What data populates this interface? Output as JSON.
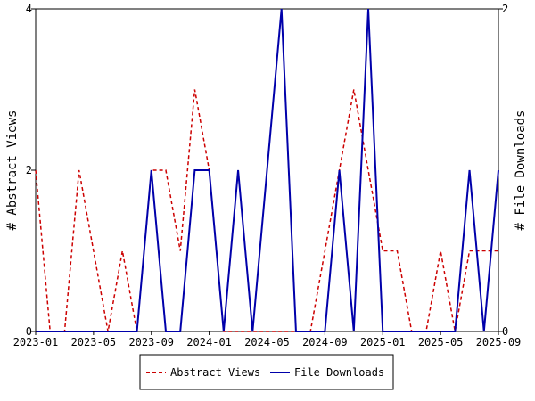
{
  "chart_data": {
    "type": "line",
    "xlabel": "",
    "ylabel_left": "# Abstract Views",
    "ylabel_right": "# File Downloads",
    "ylim_left": [
      0,
      4
    ],
    "ylim_right": [
      0,
      2
    ],
    "yticks_left": [
      "0",
      "2",
      "4"
    ],
    "yticks_right": [
      "0",
      "2"
    ],
    "xticks": [
      "2023-01",
      "2023-05",
      "2023-09",
      "2024-01",
      "2024-05",
      "2024-09",
      "2025-01",
      "2025-05",
      "2025-09"
    ],
    "x": [
      "2023-01",
      "2023-02",
      "2023-03",
      "2023-04",
      "2023-05",
      "2023-06",
      "2023-07",
      "2023-08",
      "2023-09",
      "2023-10",
      "2023-11",
      "2023-12",
      "2024-01",
      "2024-02",
      "2024-03",
      "2024-04",
      "2024-05",
      "2024-06",
      "2024-07",
      "2024-08",
      "2024-09",
      "2024-10",
      "2024-11",
      "2024-12",
      "2025-01",
      "2025-02",
      "2025-03",
      "2025-04",
      "2025-05",
      "2025-06",
      "2025-07",
      "2025-08",
      "2025-09"
    ],
    "grid": false,
    "legend_position": "bottom",
    "series": [
      {
        "name": "Abstract Views",
        "axis": "left",
        "color": "#cc0000",
        "style": "dashed",
        "values": [
          2,
          0,
          0,
          2,
          1,
          0,
          1,
          0,
          2,
          2,
          1,
          3,
          2,
          0,
          0,
          0,
          0,
          0,
          0,
          0,
          1,
          2,
          3,
          2,
          1,
          1,
          0,
          0,
          1,
          0,
          1,
          1,
          1
        ]
      },
      {
        "name": "File Downloads",
        "axis": "right",
        "color": "#0000aa",
        "style": "solid",
        "values": [
          0,
          0,
          0,
          0,
          0,
          0,
          0,
          0,
          1,
          0,
          0,
          1,
          1,
          0,
          1,
          0,
          1,
          2,
          0,
          0,
          0,
          1,
          0,
          2,
          0,
          0,
          0,
          0,
          0,
          0,
          1,
          0,
          1
        ]
      }
    ]
  }
}
